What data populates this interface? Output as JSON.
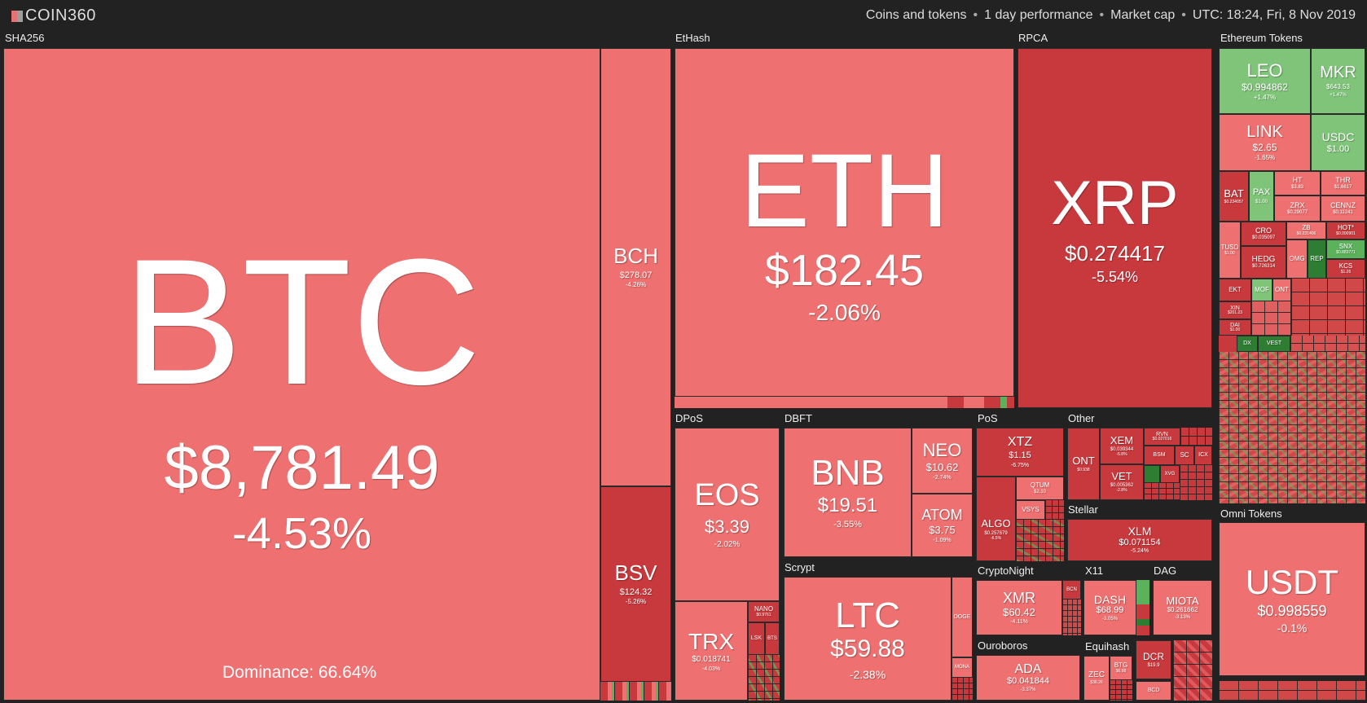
{
  "header": {
    "logo_text": "COIN360",
    "filter_coins": "Coins and tokens",
    "filter_period": "1 day performance",
    "filter_metric": "Market cap",
    "timestamp": "UTC: 18:24, Fri, 8 Nov 2019"
  },
  "colors": {
    "down": "#ee7070",
    "down_dark": "#c8393d",
    "up": "#80c47a",
    "up_dark": "#2e7d32",
    "background": "#222222"
  },
  "sectors": {
    "sha256": "SHA256",
    "ethash": "EtHash",
    "rpca": "RPCA",
    "ethereum_tokens": "Ethereum Tokens",
    "dpos": "DPoS",
    "dbft": "DBFT",
    "pos": "PoS",
    "other": "Other",
    "stellar": "Stellar",
    "scrypt": "Scrypt",
    "cryptonight": "CryptoNight",
    "x11": "X11",
    "dag": "DAG",
    "ouroboros": "Ouroboros",
    "equihash": "Equihash",
    "omni_tokens": "Omni Tokens"
  },
  "dominance": "Dominance: 66.64%",
  "coins": {
    "btc": {
      "symbol": "BTC",
      "price": "$8,781.49",
      "change": "-4.53%"
    },
    "bch": {
      "symbol": "BCH",
      "price": "$278.07",
      "change": "-4.26%"
    },
    "bsv": {
      "symbol": "BSV",
      "price": "$124.32",
      "change": "-5.26%"
    },
    "eth": {
      "symbol": "ETH",
      "price": "$182.45",
      "change": "-2.06%"
    },
    "xrp": {
      "symbol": "XRP",
      "price": "$0.274417",
      "change": "-5.54%"
    },
    "leo": {
      "symbol": "LEO",
      "price": "$0.994862",
      "change": "+1.47%"
    },
    "mkr": {
      "symbol": "MKR",
      "price": "$643.53",
      "change": "+1.47%"
    },
    "link": {
      "symbol": "LINK",
      "price": "$2.65",
      "change": "-1.65%"
    },
    "usdc": {
      "symbol": "USDC",
      "price": "$1.00",
      "change": ""
    },
    "bat": {
      "symbol": "BAT",
      "price": "$0.234057",
      "change": ""
    },
    "pax": {
      "symbol": "PAX",
      "price": "$1.00",
      "change": ""
    },
    "ht": {
      "symbol": "HT",
      "price": "$3.83",
      "change": ""
    },
    "thr": {
      "symbol": "THR",
      "price": "$1.6617",
      "change": ""
    },
    "zrx": {
      "symbol": "ZRX",
      "price": "$0.29077",
      "change": ""
    },
    "cennz": {
      "symbol": "CENNZ",
      "price": "$0.11241",
      "change": ""
    },
    "cro": {
      "symbol": "CRO",
      "price": "$0.035097",
      "change": ""
    },
    "zb": {
      "symbol": "ZB",
      "price": "$0.231406",
      "change": ""
    },
    "hot": {
      "symbol": "HOT*",
      "price": "$0.000901",
      "change": ""
    },
    "tusd": {
      "symbol": "TUSD",
      "price": "$1.00",
      "change": ""
    },
    "hedg": {
      "symbol": "HEDG",
      "price": "$0.726314",
      "change": ""
    },
    "omg": {
      "symbol": "OMG",
      "price": "",
      "change": ""
    },
    "rep": {
      "symbol": "REP",
      "price": "",
      "change": ""
    },
    "snx": {
      "symbol": "SNX",
      "price": "$0.883771",
      "change": ""
    },
    "kcs": {
      "symbol": "KCS",
      "price": "$1.26",
      "change": ""
    },
    "ekt": {
      "symbol": "EKT",
      "price": "",
      "change": ""
    },
    "mof": {
      "symbol": "MOF",
      "price": "",
      "change": ""
    },
    "ont_tok": {
      "symbol": "ONT",
      "price": "",
      "change": ""
    },
    "xin": {
      "symbol": "XIN",
      "price": "$201.23",
      "change": ""
    },
    "dai": {
      "symbol": "DAI",
      "price": "$1.00",
      "change": ""
    },
    "dx": {
      "symbol": "DX",
      "price": "",
      "change": ""
    },
    "vest": {
      "symbol": "VEST",
      "price": "",
      "change": ""
    },
    "eos": {
      "symbol": "EOS",
      "price": "$3.39",
      "change": "-2.02%"
    },
    "trx": {
      "symbol": "TRX",
      "price": "$0.018741",
      "change": "-4.03%"
    },
    "nano": {
      "symbol": "NANO",
      "price": "$0.9761",
      "change": ""
    },
    "lsk": {
      "symbol": "LSK",
      "price": "",
      "change": ""
    },
    "bts": {
      "symbol": "BTS",
      "price": "",
      "change": ""
    },
    "bnb": {
      "symbol": "BNB",
      "price": "$19.51",
      "change": "-3.55%"
    },
    "neo": {
      "symbol": "NEO",
      "price": "$10.62",
      "change": "-2.74%"
    },
    "atom": {
      "symbol": "ATOM",
      "price": "$3.75",
      "change": "-1.09%"
    },
    "xtz": {
      "symbol": "XTZ",
      "price": "$1.15",
      "change": "-6.75%"
    },
    "qtum": {
      "symbol": "QTUM",
      "price": "$2.10",
      "change": ""
    },
    "vsys": {
      "symbol": "VSYS",
      "price": "",
      "change": ""
    },
    "algo": {
      "symbol": "ALGO",
      "price": "$0.257679",
      "change": "-6.5%"
    },
    "ont": {
      "symbol": "ONT",
      "price": "$0.938",
      "change": ""
    },
    "xem": {
      "symbol": "XEM",
      "price": "$0.039344",
      "change": "-5.8%"
    },
    "vet": {
      "symbol": "VET",
      "price": "$0.005362",
      "change": "-2.8%"
    },
    "rvn": {
      "symbol": "RVN",
      "price": "$0.027016",
      "change": ""
    },
    "bsm": {
      "symbol": "BSM",
      "price": "",
      "change": ""
    },
    "sc": {
      "symbol": "SC",
      "price": "",
      "change": ""
    },
    "icx": {
      "symbol": "ICX",
      "price": "",
      "change": ""
    },
    "xvg": {
      "symbol": "XVG",
      "price": "",
      "change": ""
    },
    "xlm": {
      "symbol": "XLM",
      "price": "$0.071154",
      "change": "-5.24%"
    },
    "ltc": {
      "symbol": "LTC",
      "price": "$59.88",
      "change": "-2.38%"
    },
    "doge": {
      "symbol": "DOGE",
      "price": "",
      "change": ""
    },
    "mona": {
      "symbol": "MONA",
      "price": "",
      "change": ""
    },
    "xmr": {
      "symbol": "XMR",
      "price": "$60.42",
      "change": "-4.11%"
    },
    "bcn": {
      "symbol": "BCN",
      "price": "",
      "change": ""
    },
    "dash": {
      "symbol": "DASH",
      "price": "$68.99",
      "change": "-3.05%"
    },
    "miota": {
      "symbol": "MIOTA",
      "price": "$0.261662",
      "change": "-3.13%"
    },
    "ada": {
      "symbol": "ADA",
      "price": "$0.041844",
      "change": "-3.37%"
    },
    "zec": {
      "symbol": "ZEC",
      "price": "$36.26",
      "change": ""
    },
    "btg": {
      "symbol": "BTG",
      "price": "$6.98",
      "change": ""
    },
    "dcr": {
      "symbol": "DCR",
      "price": "$19.9",
      "change": ""
    },
    "bcd": {
      "symbol": "BCD",
      "price": "",
      "change": ""
    },
    "usdt": {
      "symbol": "USDT",
      "price": "$0.998559",
      "change": "-0.1%"
    }
  }
}
